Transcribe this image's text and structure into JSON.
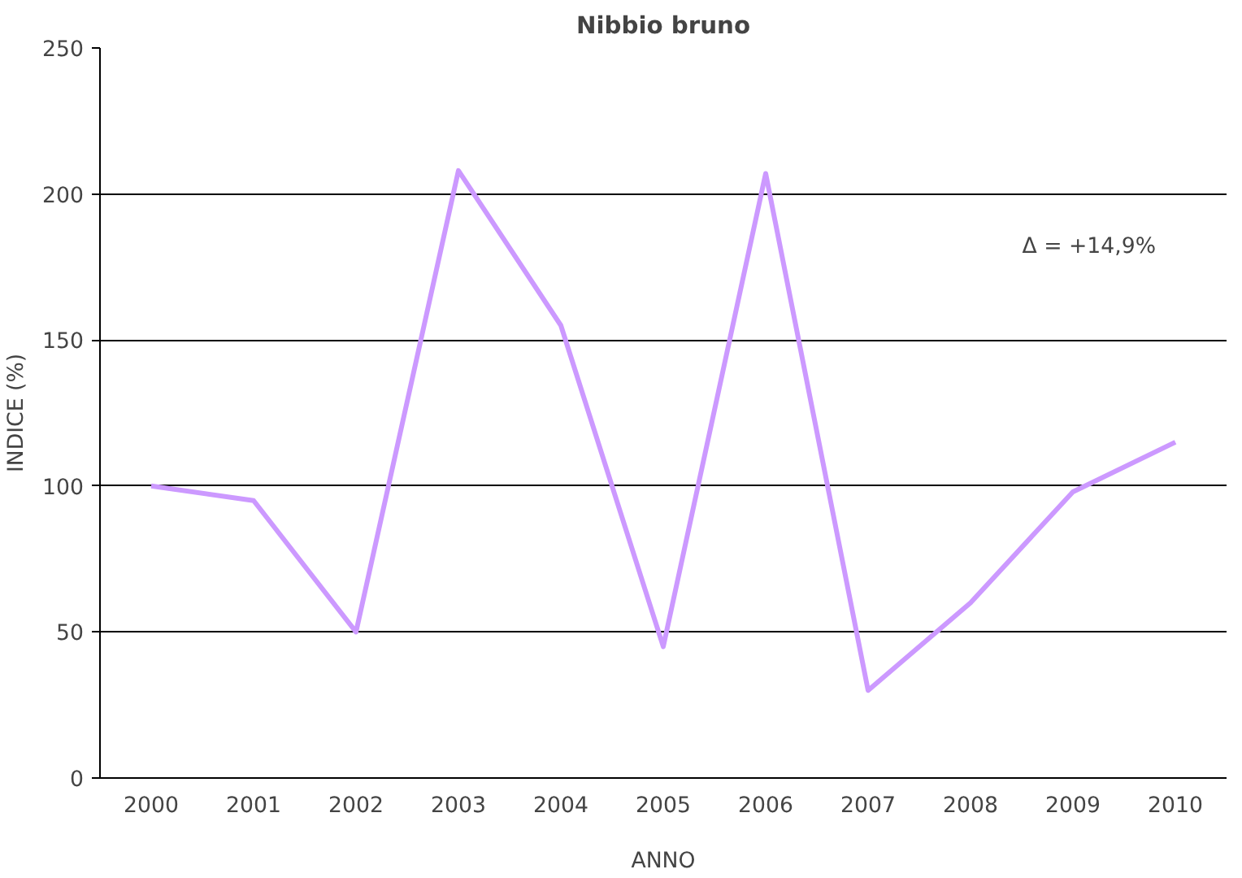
{
  "chart_data": {
    "type": "line",
    "title": "Nibbio bruno",
    "xlabel": "ANNO",
    "ylabel": "INDICE (%)",
    "categories": [
      "2000",
      "2001",
      "2002",
      "2003",
      "2004",
      "2005",
      "2006",
      "2007",
      "2008",
      "2009",
      "2010"
    ],
    "series": [
      {
        "color": "#cc99ff",
        "values": [
          100,
          95,
          50,
          208,
          155,
          45,
          207,
          30,
          60,
          98,
          115
        ]
      }
    ],
    "ylim": [
      0,
      250
    ],
    "yticks": [
      0,
      50,
      100,
      150,
      200,
      250
    ],
    "grid": "y",
    "marker": "none",
    "line_style": "solid",
    "annotations": [
      "Δ = +14,9%"
    ]
  }
}
